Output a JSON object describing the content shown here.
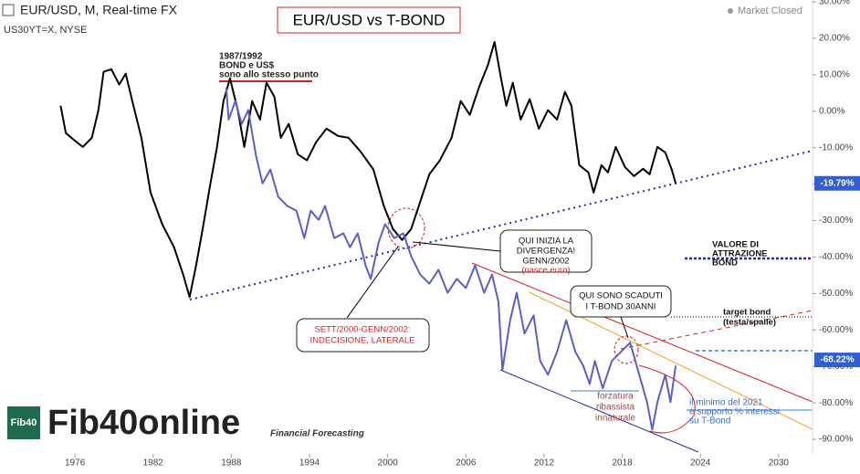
{
  "chart_data": {
    "type": "line",
    "title": "EUR/USD vs T-BOND",
    "status": "Market Closed",
    "xlim": [
      1970.25,
      2032.6
    ],
    "xticks": [
      1976,
      1982,
      1988,
      1994,
      2000,
      2006,
      2012,
      2018,
      2024,
      2030
    ],
    "ylim": [
      -94,
      30.5
    ],
    "yticks": [
      {
        "value": 30,
        "label": "30.00%"
      },
      {
        "value": 20,
        "label": "20.00%"
      },
      {
        "value": 10,
        "label": "10.00%"
      },
      {
        "value": 0,
        "label": "0.00%"
      },
      {
        "value": -10,
        "label": "-10.00%"
      },
      {
        "value": -20,
        "label": "-20.00%"
      },
      {
        "value": -30,
        "label": "-30.00%"
      },
      {
        "value": -40,
        "label": "-40.00%"
      },
      {
        "value": -50,
        "label": "-50.00%"
      },
      {
        "value": -60,
        "label": "-60.00%"
      },
      {
        "value": -70,
        "label": "-70.00%"
      },
      {
        "value": -80,
        "label": "-80.00%"
      },
      {
        "value": -90,
        "label": "-90.00%"
      }
    ],
    "grid": false,
    "series": [
      {
        "name": "EUR/USD, M, Real-time FX",
        "color": "#000000",
        "last": {
          "value": -19.79,
          "label": "-19.79%"
        },
        "label_color": "#2f5fd0",
        "x": [
          1974.9,
          1975.3,
          1975.9,
          1976.6,
          1977.3,
          1977.8,
          1978.2,
          1978.8,
          1979.4,
          1979.9,
          1980.4,
          1981.1,
          1981.8,
          1982.7,
          1983.6,
          1984.3,
          1984.8,
          1985.3,
          1985.8,
          1986.4,
          1986.9,
          1987.4,
          1987.9,
          1988.5,
          1989.0,
          1989.6,
          1990.2,
          1990.7,
          1991.3,
          1991.8,
          1992.4,
          1993.1,
          1993.8,
          1994.5,
          1995.3,
          1996.2,
          1997.0,
          1997.9,
          1998.9,
          1999.7,
          2000.4,
          2001.1,
          2001.8,
          2002.5,
          2003.2,
          2004.0,
          2004.9,
          2005.6,
          2006.3,
          2007.0,
          2007.7,
          2008.2,
          2008.7,
          2009.1,
          2009.6,
          2010.2,
          2010.9,
          2011.6,
          2012.3,
          2013.0,
          2013.6,
          2014.1,
          2014.7,
          2015.4,
          2015.8,
          2016.4,
          2016.9,
          2017.5,
          2018.2,
          2018.9,
          2019.6,
          2020.1,
          2020.7,
          2021.3,
          2021.8,
          2022.1
        ],
        "values": [
          1.5,
          -6,
          -7.8,
          -9.8,
          -7.3,
          0.3,
          10.8,
          11.5,
          7.3,
          10.3,
          2.8,
          -7.3,
          -22.3,
          -31,
          -37.3,
          -44.8,
          -51,
          -42.3,
          -32.3,
          -19.8,
          -9.8,
          2.8,
          9,
          0.3,
          -9.8,
          2.8,
          -2.3,
          7.8,
          4,
          -7.3,
          -3.5,
          -11.8,
          -13.5,
          -8.5,
          -4.8,
          -6.8,
          -7.3,
          -11,
          -16,
          -26,
          -32.3,
          -35.3,
          -32.3,
          -24.8,
          -17.3,
          -13.5,
          -7.3,
          2.8,
          -1,
          6.5,
          12.8,
          19,
          9,
          1.5,
          7.8,
          -2.3,
          3.3,
          -4.8,
          0.3,
          -2.3,
          5.3,
          1.5,
          -14.8,
          -16.8,
          -22.3,
          -14.8,
          -16.8,
          -9.8,
          -15.3,
          -17.8,
          -15.8,
          -17.3,
          -9.8,
          -11.3,
          -16,
          -19.8
        ]
      },
      {
        "name": "US30YT=X, NYSE",
        "color": "#5b5fc7",
        "last": {
          "value": -68.22,
          "label": "-68.22%"
        },
        "label_color": "#2f5fd0",
        "x": [
          1987.6,
          1987.8,
          1988.3,
          1988.8,
          1989.3,
          1989.9,
          1990.4,
          1991.0,
          1991.6,
          1992.3,
          1993.0,
          1993.6,
          1994.1,
          1994.7,
          1995.2,
          1995.9,
          1996.6,
          1997.1,
          1997.7,
          1998.3,
          1998.7,
          1999.3,
          1999.8,
          2000.5,
          2001.2,
          2001.8,
          2002.5,
          2003.2,
          2003.9,
          2004.6,
          2005.3,
          2006.0,
          2006.7,
          2007.4,
          2008.0,
          2008.5,
          2008.8,
          2009.4,
          2009.9,
          2010.5,
          2011.2,
          2011.7,
          2012.3,
          2013.0,
          2013.7,
          2014.4,
          2015.0,
          2015.5,
          2015.9,
          2016.5,
          2017.2,
          2017.9,
          2018.6,
          2019.3,
          2019.9,
          2020.3,
          2020.7,
          2021.3,
          2021.7,
          2022.1
        ],
        "values": [
          6.5,
          -2.3,
          2.8,
          -3.5,
          0.3,
          -12.3,
          -19.8,
          -16,
          -23.5,
          -26,
          -27.3,
          -34.8,
          -27.3,
          -29.8,
          -26,
          -34.8,
          -33.5,
          -37.3,
          -33.5,
          -42.3,
          -46,
          -36,
          -31,
          -34.8,
          -33.5,
          -39.8,
          -44.8,
          -47.3,
          -43.5,
          -49.8,
          -46,
          -48.5,
          -42.3,
          -49.8,
          -44.8,
          -52.3,
          -71,
          -57.3,
          -49.8,
          -61,
          -56,
          -68.5,
          -72.3,
          -66,
          -57.3,
          -66,
          -69.8,
          -74.8,
          -68.5,
          -76,
          -68.5,
          -66,
          -63.5,
          -72.3,
          -79.8,
          -87.3,
          -79.8,
          -72.3,
          -79.8,
          -69.8
        ]
      }
    ],
    "annotations": [
      {
        "lines": [
          "1987/1992",
          "BOND e US$",
          "sono allo stesso punto"
        ]
      },
      {
        "lines": [
          "QUI INIZIA LA",
          "DIVERGENZA!",
          "GENN/2002"
        ]
      },
      {
        "lines": [
          "(nasce euro)"
        ]
      },
      {
        "lines": [
          "SETT/2000-GENN/2002:",
          "INDECISIONE, LATERALE"
        ]
      },
      {
        "lines": [
          "QUI SONO SCADUTI",
          "I T-BOND 30ANNI"
        ]
      },
      {
        "lines": [
          "VALORE DI",
          "ATTRAZIONE",
          "BOND"
        ]
      },
      {
        "lines": [
          "target bond",
          "(testa/spalle)"
        ]
      },
      {
        "lines": [
          "forzatura",
          "ribassista",
          "innaturale"
        ]
      },
      {
        "lines": [
          "il minimo del 2021",
          "è supporto % interessi",
          "su T-Bond"
        ]
      }
    ]
  },
  "branding": {
    "logo": "Fib40",
    "name": "Fib40online",
    "tagline": "Financial Forecasting"
  }
}
